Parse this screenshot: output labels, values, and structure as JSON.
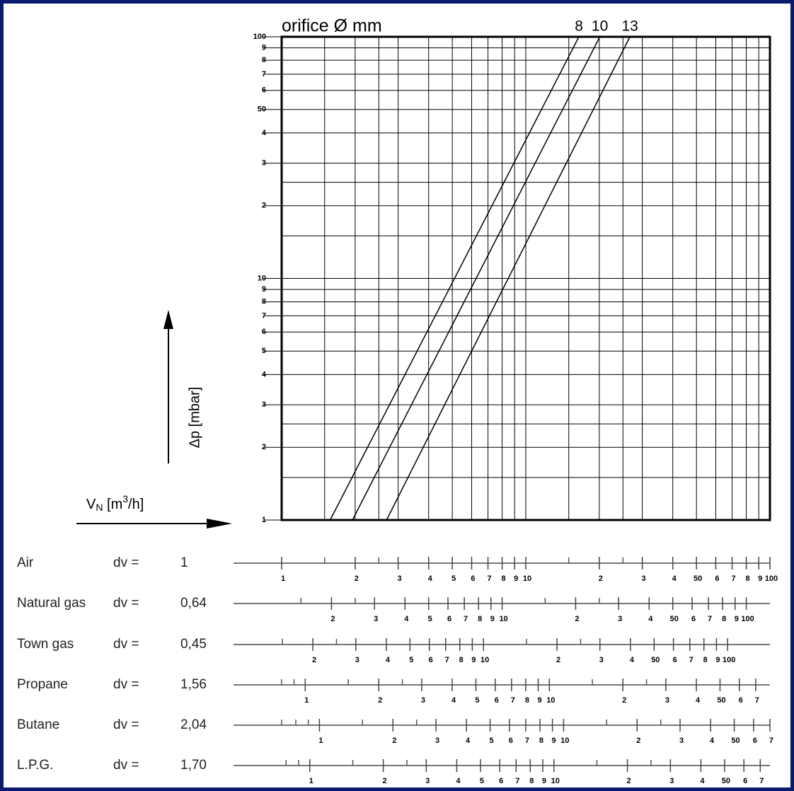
{
  "chart_data": {
    "type": "line",
    "title": "orifice Ø mm",
    "ylabel": "Δp [mbar]",
    "xlabel_parts": [
      "V",
      "N",
      " [m",
      "3",
      "/h]"
    ],
    "log_x": true,
    "log_y": true,
    "grid": true,
    "color": "#000000",
    "xlim": [
      1,
      100
    ],
    "ylim": [
      1,
      100
    ],
    "xgrid": [
      1,
      1.5,
      2,
      2.5,
      3,
      4,
      5,
      6,
      7,
      8,
      9,
      10,
      15,
      20,
      25,
      30,
      40,
      50,
      60,
      70,
      80,
      90,
      100
    ],
    "yticks": [
      1,
      2,
      3,
      4,
      5,
      6,
      7,
      8,
      9,
      10,
      {
        "value": 20,
        "label": "2"
      },
      {
        "value": 30,
        "label": "3"
      },
      {
        "value": 40,
        "label": "4"
      },
      50,
      {
        "value": 60,
        "label": "6"
      },
      {
        "value": 70,
        "label": "7"
      },
      {
        "value": 80,
        "label": "8"
      },
      {
        "value": 90,
        "label": "9"
      },
      100
    ],
    "yminor": [
      1.5,
      2.5,
      15,
      25
    ],
    "series": [
      {
        "name": "8",
        "x": [
          1.58,
          16.5
        ],
        "values": [
          1,
          100
        ]
      },
      {
        "name": "10",
        "x": [
          1.95,
          20.1
        ],
        "values": [
          1,
          100
        ]
      },
      {
        "name": "13",
        "x": [
          2.69,
          26.7
        ],
        "values": [
          1,
          100
        ]
      }
    ]
  },
  "scales": [
    {
      "name": "Air",
      "dv_label": "dv =",
      "dv": 1,
      "dv_text": "1",
      "ticks": [
        1,
        2,
        3,
        4,
        5,
        6,
        7,
        8,
        9,
        10,
        {
          "value": 20,
          "label": "2"
        },
        {
          "value": 30,
          "label": "3"
        },
        {
          "value": 40,
          "label": "4"
        },
        50,
        {
          "value": 60,
          "label": "6"
        },
        {
          "value": 70,
          "label": "7"
        },
        {
          "value": 80,
          "label": "8"
        },
        {
          "value": 90,
          "label": "9"
        },
        100
      ],
      "minor_ticks": [
        1.5,
        2.5,
        15,
        25
      ]
    },
    {
      "name": "Natural gas",
      "dv_label": "dv =",
      "dv": 0.64,
      "dv_text": "0,64",
      "ticks": [
        2,
        3,
        4,
        5,
        6,
        7,
        8,
        9,
        10,
        {
          "value": 20,
          "label": "2"
        },
        {
          "value": 30,
          "label": "3"
        },
        {
          "value": 40,
          "label": "4"
        },
        50,
        {
          "value": 60,
          "label": "6"
        },
        {
          "value": 70,
          "label": "7"
        },
        {
          "value": 80,
          "label": "8"
        },
        {
          "value": 90,
          "label": "9"
        },
        100
      ],
      "minor_ticks": [
        1.5,
        2.5,
        15,
        25
      ]
    },
    {
      "name": "Town gas",
      "dv_label": "dv =",
      "dv": 0.45,
      "dv_text": "0,45",
      "ticks": [
        2,
        3,
        4,
        5,
        6,
        7,
        8,
        9,
        10,
        {
          "value": 20,
          "label": "2"
        },
        {
          "value": 30,
          "label": "3"
        },
        {
          "value": 40,
          "label": "4"
        },
        50,
        {
          "value": 60,
          "label": "6"
        },
        {
          "value": 70,
          "label": "7"
        },
        {
          "value": 80,
          "label": "8"
        },
        {
          "value": 90,
          "label": "9"
        },
        100
      ],
      "minor_ticks": [
        1.5,
        2.5,
        15,
        25
      ]
    },
    {
      "name": "Propane",
      "dv_label": "dv =",
      "dv": 1.56,
      "dv_text": "1,56",
      "ticks": [
        1,
        2,
        3,
        4,
        5,
        6,
        7,
        8,
        9,
        10,
        {
          "value": 20,
          "label": "2"
        },
        {
          "value": 30,
          "label": "3"
        },
        {
          "value": 40,
          "label": "4"
        },
        50,
        {
          "value": 60,
          "label": "6"
        },
        {
          "value": 70,
          "label": "7"
        }
      ],
      "minor_ticks": [
        0.8,
        0.9,
        1.5,
        2.5,
        15,
        25
      ]
    },
    {
      "name": "Butane",
      "dv_label": "dv =",
      "dv": 2.04,
      "dv_text": "2,04",
      "ticks": [
        1,
        2,
        3,
        4,
        5,
        6,
        7,
        8,
        9,
        10,
        {
          "value": 20,
          "label": "2"
        },
        {
          "value": 30,
          "label": "3"
        },
        {
          "value": 40,
          "label": "4"
        },
        50,
        {
          "value": 60,
          "label": "6"
        },
        {
          "value": 70,
          "label": "7"
        }
      ],
      "minor_ticks": [
        0.7,
        0.8,
        0.9,
        1.5,
        2.5,
        15,
        25
      ]
    },
    {
      "name": "L.P.G.",
      "dv_label": "dv =",
      "dv": 1.7,
      "dv_text": "1,70",
      "ticks": [
        1,
        2,
        3,
        4,
        5,
        6,
        7,
        8,
        9,
        10,
        {
          "value": 20,
          "label": "2"
        },
        {
          "value": 30,
          "label": "3"
        },
        {
          "value": 40,
          "label": "4"
        },
        50,
        {
          "value": 60,
          "label": "6"
        },
        {
          "value": 70,
          "label": "7"
        }
      ],
      "minor_ticks": [
        0.8,
        0.9,
        1.5,
        2.5,
        15,
        25
      ]
    }
  ]
}
